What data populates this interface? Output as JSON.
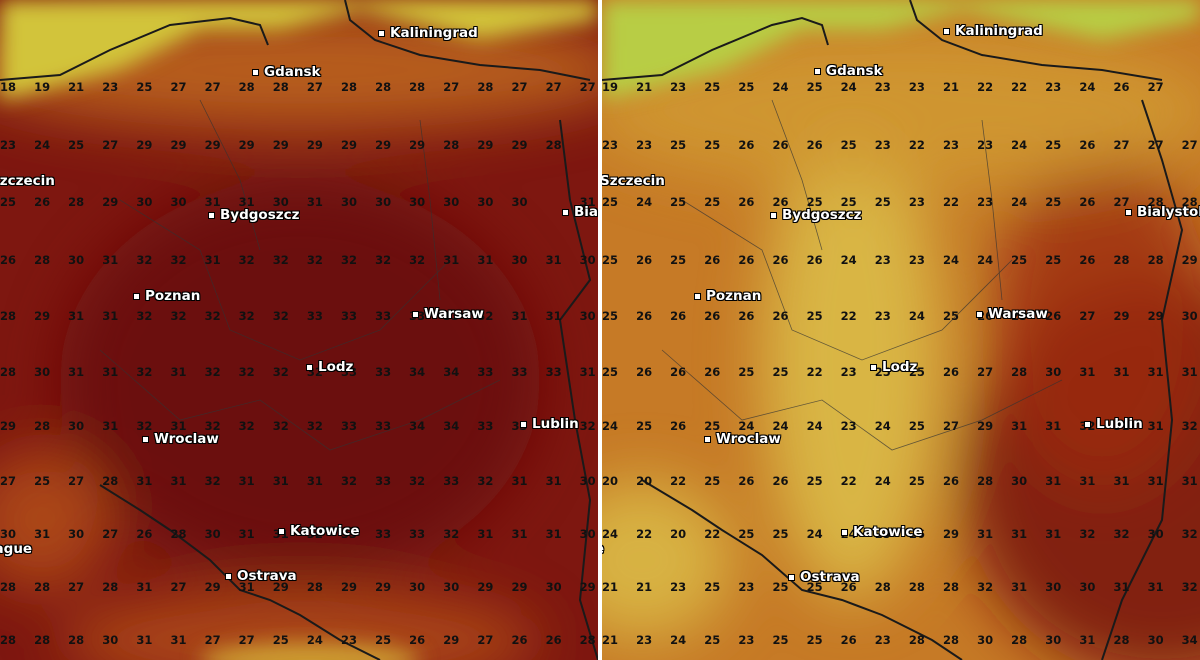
{
  "panels": [
    {
      "id": "left",
      "colors": {
        "base": "#7e1710",
        "coast": "#c06a1c",
        "north_sea": "#d2c43a",
        "core": "#6a0f0c",
        "south": "#b5521a",
        "light": "#d4aa35"
      },
      "cities": [
        "Kaliningrad",
        "Gdansk",
        "Szczecin",
        "Bydgoszcz",
        "Bia",
        "Poznan",
        "Warsaw",
        "Lodz",
        "Wroclaw",
        "Lublin",
        "Katowice",
        "Prague",
        "Ostrava"
      ],
      "grid": [
        [
          "18",
          "19",
          "21",
          "23",
          "25",
          "27",
          "27",
          "28",
          "28",
          "27",
          "28",
          "28",
          "28",
          "27",
          "28",
          "27",
          "27",
          "27"
        ],
        [
          "23",
          "24",
          "25",
          "27",
          "29",
          "29",
          "29",
          "29",
          "29",
          "29",
          "29",
          "29",
          "29",
          "28",
          "29",
          "29",
          "28",
          ""
        ],
        [
          "25",
          "26",
          "28",
          "29",
          "30",
          "30",
          "31",
          "31",
          "30",
          "31",
          "30",
          "30",
          "30",
          "30",
          "30",
          "30",
          "",
          "31"
        ],
        [
          "26",
          "28",
          "30",
          "31",
          "32",
          "32",
          "31",
          "32",
          "32",
          "32",
          "32",
          "32",
          "32",
          "31",
          "31",
          "30",
          "31",
          "30"
        ],
        [
          "28",
          "29",
          "31",
          "31",
          "32",
          "32",
          "32",
          "32",
          "32",
          "33",
          "33",
          "33",
          "33",
          "33",
          "32",
          "31",
          "31",
          "30"
        ],
        [
          "28",
          "30",
          "31",
          "31",
          "32",
          "31",
          "32",
          "32",
          "32",
          "32",
          "33",
          "33",
          "34",
          "34",
          "33",
          "33",
          "33",
          "31"
        ],
        [
          "29",
          "28",
          "30",
          "31",
          "32",
          "31",
          "32",
          "32",
          "32",
          "32",
          "33",
          "33",
          "34",
          "34",
          "33",
          "33",
          "",
          "32"
        ],
        [
          "27",
          "25",
          "27",
          "28",
          "31",
          "31",
          "32",
          "31",
          "31",
          "31",
          "32",
          "33",
          "32",
          "33",
          "32",
          "31",
          "31",
          "30"
        ],
        [
          "30",
          "31",
          "30",
          "27",
          "26",
          "28",
          "30",
          "31",
          "31",
          "32",
          "33",
          "33",
          "33",
          "32",
          "31",
          "31",
          "31",
          "30"
        ],
        [
          "28",
          "28",
          "27",
          "28",
          "31",
          "27",
          "29",
          "31",
          "29",
          "28",
          "29",
          "29",
          "30",
          "30",
          "29",
          "29",
          "30",
          "29"
        ],
        [
          "28",
          "28",
          "28",
          "30",
          "31",
          "31",
          "27",
          "27",
          "25",
          "24",
          "23",
          "25",
          "26",
          "29",
          "27",
          "26",
          "26",
          "28"
        ]
      ]
    },
    {
      "id": "right",
      "colors": {
        "base": "#c67a26",
        "coast": "#d09a33",
        "north_sea": "#b8cd44",
        "core": "#7a1610",
        "south": "#9c2a12",
        "light": "#dcc04a"
      },
      "cities": [
        "Kaliningrad",
        "Gdansk",
        "Szczecin",
        "Bydgoszcz",
        "Bialystok",
        "Poznan",
        "Warsaw",
        "Lodz",
        "Wroclaw",
        "Lublin",
        "Katowice",
        "Prague",
        "Ostrava"
      ],
      "grid": [
        [
          "19",
          "21",
          "23",
          "25",
          "25",
          "24",
          "25",
          "24",
          "23",
          "23",
          "21",
          "22",
          "22",
          "23",
          "24",
          "26",
          "27",
          ""
        ],
        [
          "23",
          "23",
          "25",
          "25",
          "26",
          "26",
          "26",
          "25",
          "23",
          "22",
          "23",
          "23",
          "24",
          "25",
          "26",
          "27",
          "27",
          "27"
        ],
        [
          "25",
          "24",
          "25",
          "25",
          "26",
          "26",
          "25",
          "25",
          "25",
          "23",
          "22",
          "23",
          "24",
          "25",
          "26",
          "27",
          "28",
          "28"
        ],
        [
          "25",
          "26",
          "25",
          "26",
          "26",
          "26",
          "26",
          "24",
          "23",
          "23",
          "24",
          "24",
          "25",
          "25",
          "26",
          "28",
          "28",
          "29"
        ],
        [
          "25",
          "26",
          "26",
          "26",
          "26",
          "26",
          "25",
          "22",
          "23",
          "24",
          "25",
          "26",
          "25",
          "26",
          "27",
          "29",
          "29",
          "30"
        ],
        [
          "25",
          "26",
          "26",
          "26",
          "25",
          "25",
          "22",
          "23",
          "25",
          "25",
          "26",
          "27",
          "28",
          "30",
          "31",
          "31",
          "31",
          "31"
        ],
        [
          "24",
          "25",
          "26",
          "25",
          "24",
          "24",
          "24",
          "23",
          "24",
          "25",
          "27",
          "29",
          "31",
          "31",
          "32",
          "31",
          "31",
          "32"
        ],
        [
          "20",
          "20",
          "22",
          "25",
          "26",
          "26",
          "25",
          "22",
          "24",
          "25",
          "26",
          "28",
          "30",
          "31",
          "31",
          "31",
          "31",
          "31"
        ],
        [
          "24",
          "22",
          "20",
          "22",
          "25",
          "25",
          "24",
          "24",
          "25",
          "26",
          "29",
          "31",
          "31",
          "31",
          "32",
          "32",
          "30",
          "32"
        ],
        [
          "21",
          "21",
          "23",
          "25",
          "23",
          "25",
          "25",
          "26",
          "28",
          "28",
          "28",
          "32",
          "31",
          "30",
          "30",
          "31",
          "31",
          "32"
        ],
        [
          "21",
          "23",
          "24",
          "25",
          "23",
          "25",
          "25",
          "26",
          "23",
          "28",
          "28",
          "30",
          "28",
          "30",
          "31",
          "28",
          "30",
          "34"
        ]
      ]
    }
  ]
}
